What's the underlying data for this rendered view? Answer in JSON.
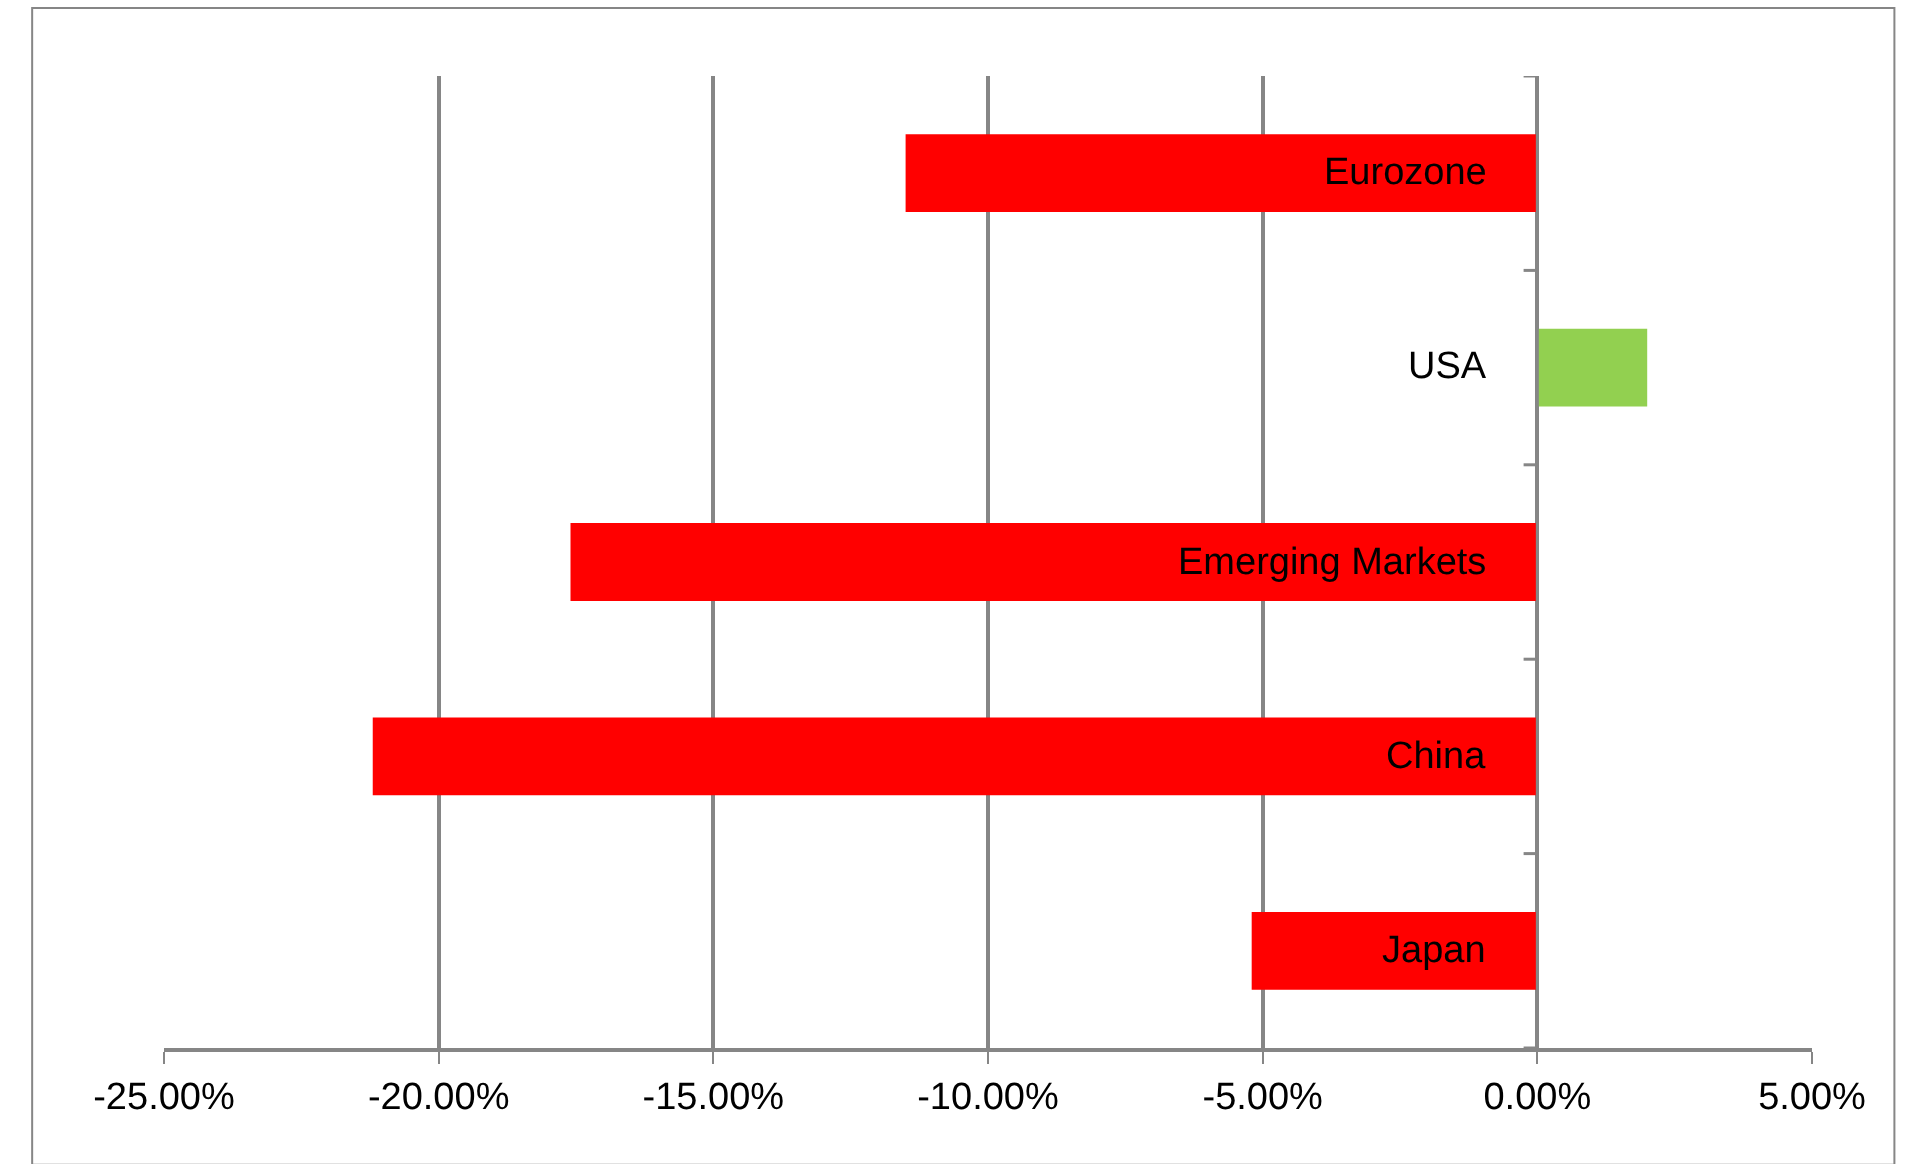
{
  "chart_data": {
    "type": "bar",
    "orientation": "horizontal",
    "categories": [
      "Eurozone",
      "USA",
      "Emerging Markets",
      "China",
      "Japan"
    ],
    "values": [
      -11.5,
      2.0,
      -17.6,
      -21.2,
      -5.2
    ],
    "colors": [
      "#ff0000",
      "#92d050",
      "#ff0000",
      "#ff0000",
      "#ff0000"
    ],
    "xlim": [
      -25,
      5
    ],
    "xticks": [
      {
        "value": -25,
        "label": "-25.00%"
      },
      {
        "value": -20,
        "label": "-20.00%"
      },
      {
        "value": -15,
        "label": "-15.00%"
      },
      {
        "value": -10,
        "label": "-10.00%"
      },
      {
        "value": -5,
        "label": "-5.00%"
      },
      {
        "value": 0,
        "label": "0.00%"
      },
      {
        "value": 5,
        "label": "5.00%"
      }
    ],
    "grid": "x"
  }
}
